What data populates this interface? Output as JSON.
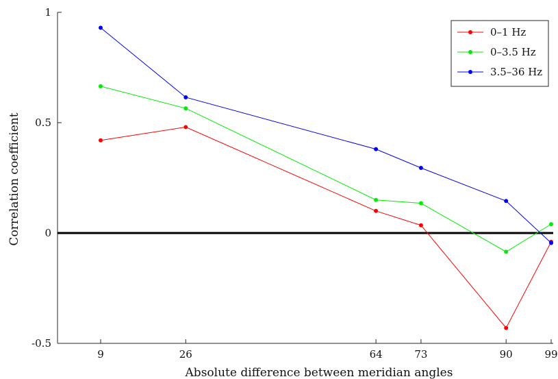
{
  "chart_data": {
    "type": "line",
    "title": "",
    "xlabel": "Absolute difference between meridian angles",
    "ylabel": "Correlation coefficient",
    "x": [
      9,
      26,
      64,
      73,
      90,
      99
    ],
    "xticks": [
      "9",
      "26",
      "64",
      "73",
      "90",
      "99"
    ],
    "yticks": [
      -0.5,
      0,
      0.5,
      1
    ],
    "ytick_labels": [
      "-0.5",
      "0",
      "0.5",
      "1"
    ],
    "xlim": [
      0,
      99
    ],
    "ylim": [
      -0.5,
      1
    ],
    "grid": false,
    "legend_position": "top-right",
    "reference_line": {
      "y": 0,
      "color": "#000000"
    },
    "series": [
      {
        "name": "0–1 Hz",
        "color": "#ff0000",
        "values": [
          0.42,
          0.48,
          0.1,
          0.035,
          -0.43,
          -0.04
        ]
      },
      {
        "name": "0–3.5 Hz",
        "color": "#00ee00",
        "values": [
          0.665,
          0.565,
          0.15,
          0.135,
          -0.085,
          0.04
        ]
      },
      {
        "name": "3.5–36 Hz",
        "color": "#0000ff",
        "values": [
          0.93,
          0.615,
          0.38,
          0.295,
          0.145,
          -0.045
        ]
      }
    ]
  }
}
